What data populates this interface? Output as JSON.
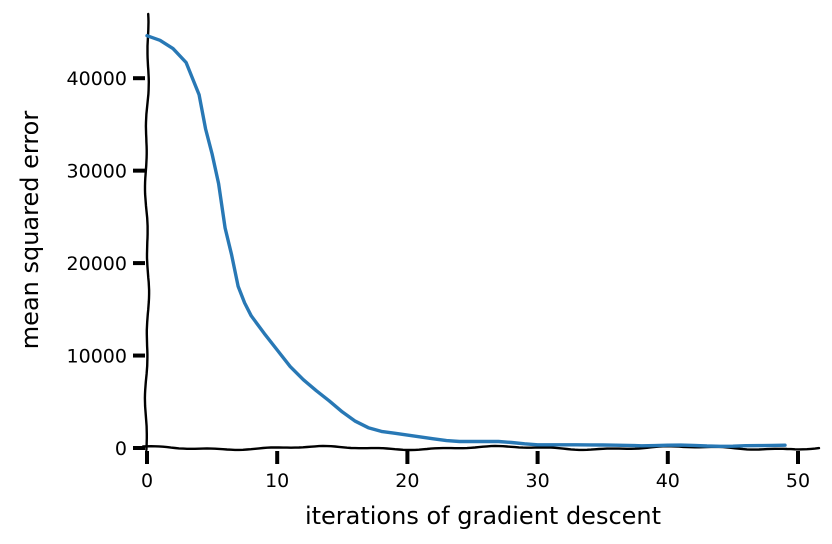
{
  "chart_data": {
    "type": "line",
    "title": "",
    "xlabel": "iterations of gradient descent",
    "ylabel": "mean squared error",
    "xlim": [
      0,
      51
    ],
    "ylim": [
      -300,
      47000
    ],
    "xticks": [
      0,
      10,
      20,
      30,
      40,
      50
    ],
    "yticks": [
      0,
      10000,
      20000,
      30000,
      40000
    ],
    "grid": false,
    "legend": "none",
    "style": "xkcd sketch",
    "colors": {
      "line": "#2878b5",
      "axes": "#000000"
    },
    "series": [
      {
        "values_x": [
          0,
          1,
          2,
          3,
          4,
          4.5,
          5,
          5.5,
          6,
          6.5,
          7,
          7.5,
          8,
          9,
          10,
          11,
          12,
          13,
          14,
          15,
          16,
          17,
          18,
          19,
          20,
          21,
          22,
          23,
          24,
          25,
          26,
          27,
          28,
          29,
          30,
          31,
          32,
          33,
          34,
          35,
          36,
          37,
          38,
          39,
          40,
          41,
          42,
          43,
          44,
          45,
          46,
          47,
          48,
          49
        ],
        "values_y": [
          44600,
          44100,
          43200,
          41700,
          38200,
          34500,
          31800,
          28600,
          23800,
          20900,
          17500,
          15700,
          14300,
          12400,
          10600,
          8800,
          7400,
          6200,
          5100,
          3900,
          2900,
          2200,
          1800,
          1600,
          1400,
          1200,
          1000,
          800,
          700,
          700,
          700,
          700,
          600,
          450,
          350,
          350,
          350,
          350,
          330,
          320,
          300,
          280,
          240,
          260,
          300,
          310,
          280,
          220,
          180,
          200,
          250,
          260,
          280,
          300
        ]
      }
    ]
  }
}
